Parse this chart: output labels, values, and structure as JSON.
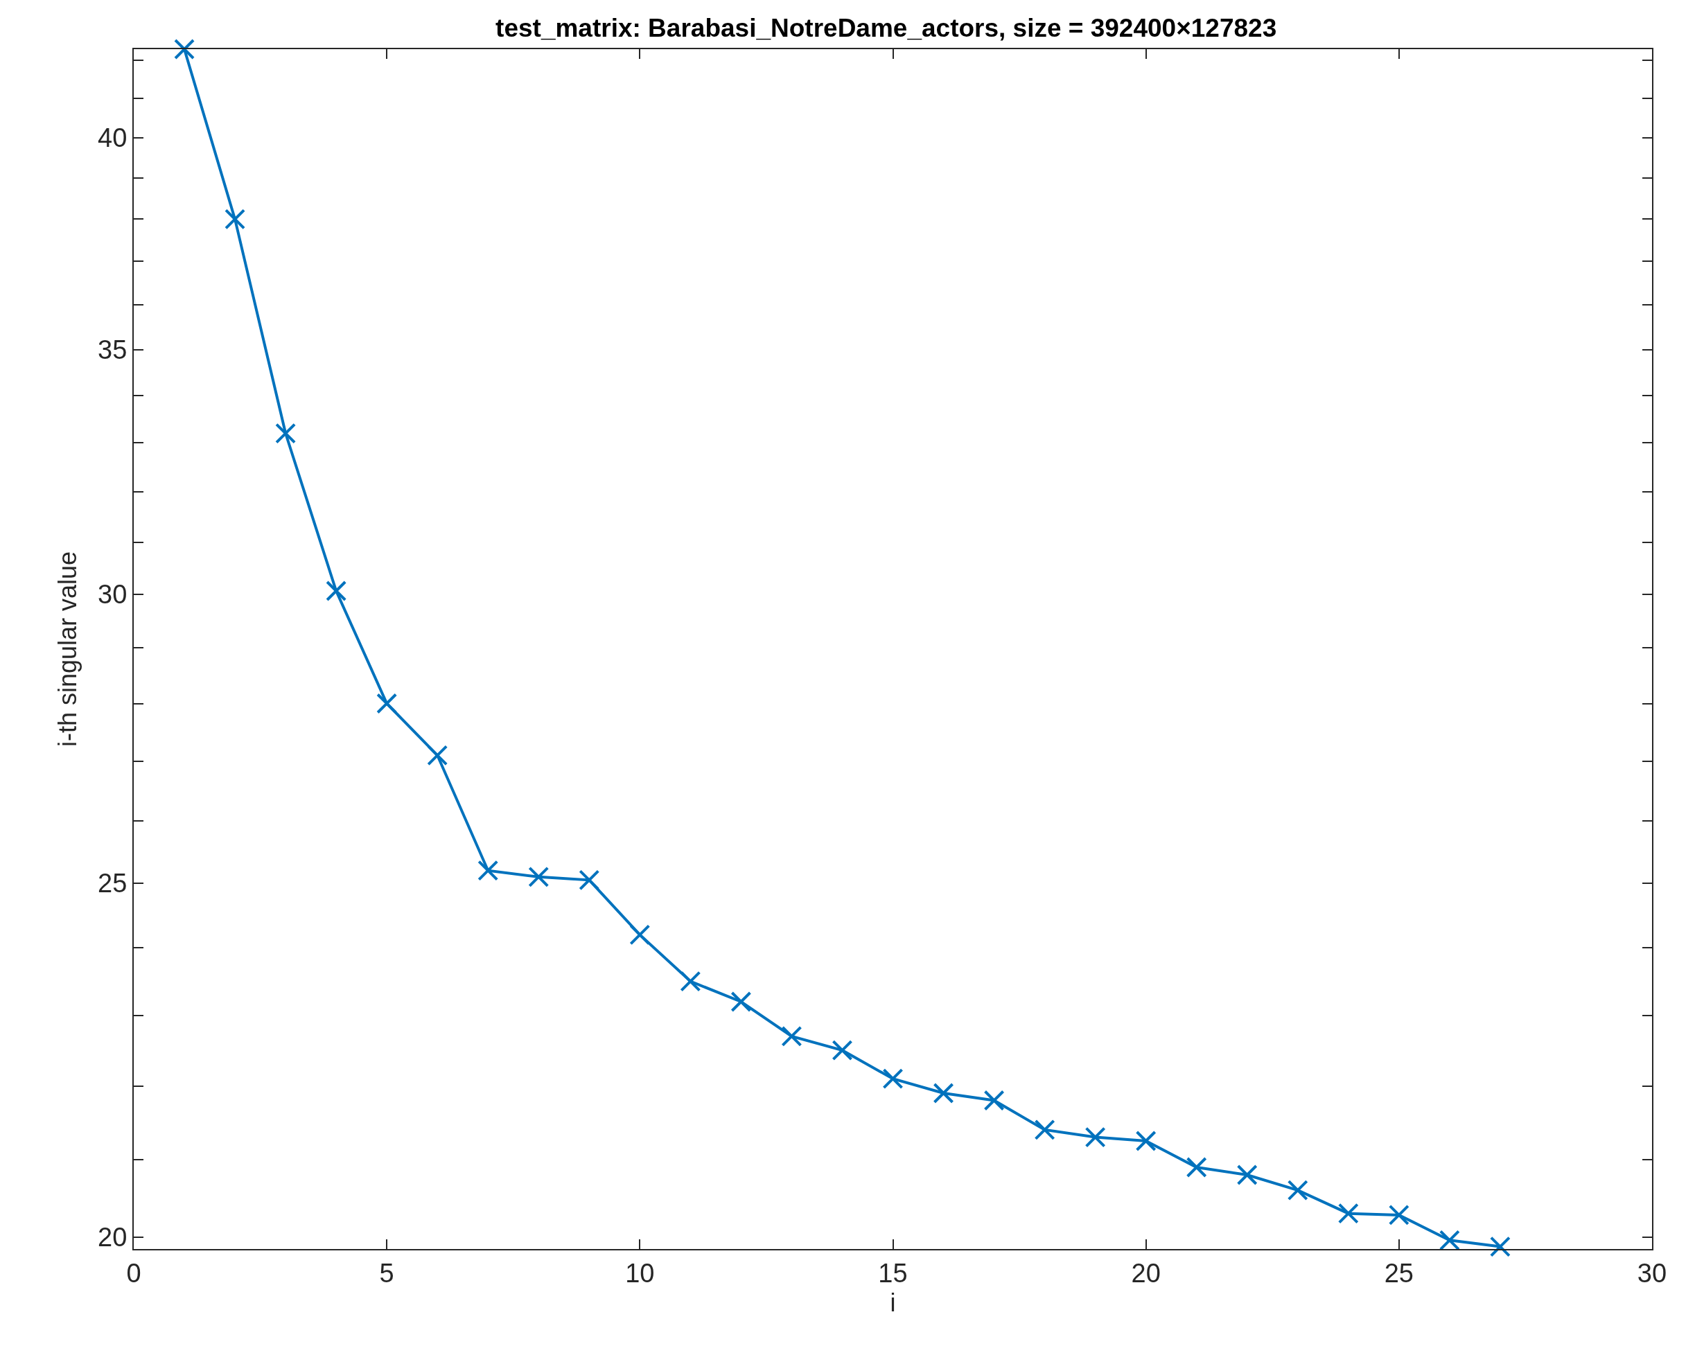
{
  "chart_data": {
    "type": "line",
    "title": "test_matrix: Barabasi_NotreDame_actors, size = 392400×127823",
    "xlabel": "i",
    "ylabel": "i-th singular value",
    "log": "y",
    "marker": "cross",
    "line_style": "solid",
    "x": [
      1,
      2,
      3,
      4,
      5,
      6,
      7,
      8,
      9,
      10,
      11,
      12,
      13,
      14,
      15,
      16,
      17,
      18,
      19,
      20,
      21,
      22,
      23,
      24,
      25,
      26,
      27
    ],
    "series": [
      {
        "color": "#0072bd",
        "values": [
          42.3,
          38.0,
          33.2,
          30.06,
          28.0,
          27.1,
          25.2,
          25.1,
          25.05,
          24.2,
          23.5,
          23.2,
          22.7,
          22.5,
          22.1,
          21.9,
          21.8,
          21.4,
          21.3,
          21.25,
          20.9,
          20.8,
          20.6,
          20.3,
          20.28,
          19.96,
          19.88
        ]
      }
    ],
    "xlim": [
      0,
      30
    ],
    "xticks": [
      0,
      5,
      10,
      15,
      20,
      25,
      30
    ],
    "ylim": [
      19.85,
      42.3
    ],
    "yticks": [
      20,
      {
        "value": 21,
        "label": null
      },
      {
        "value": 22,
        "label": null
      },
      {
        "value": 23,
        "label": null
      },
      {
        "value": 24,
        "label": null
      },
      25,
      {
        "value": 26,
        "label": null
      },
      {
        "value": 27,
        "label": null
      },
      {
        "value": 28,
        "label": null
      },
      {
        "value": 29,
        "label": null
      },
      30,
      {
        "value": 31,
        "label": null
      },
      {
        "value": 32,
        "label": null
      },
      {
        "value": 33,
        "label": null
      },
      {
        "value": 34,
        "label": null
      },
      35,
      {
        "value": 36,
        "label": null
      },
      {
        "value": 37,
        "label": null
      },
      {
        "value": 38,
        "label": null
      },
      {
        "value": 39,
        "label": null
      },
      40,
      {
        "value": 41,
        "label": null
      },
      {
        "value": 42,
        "label": null
      }
    ]
  }
}
